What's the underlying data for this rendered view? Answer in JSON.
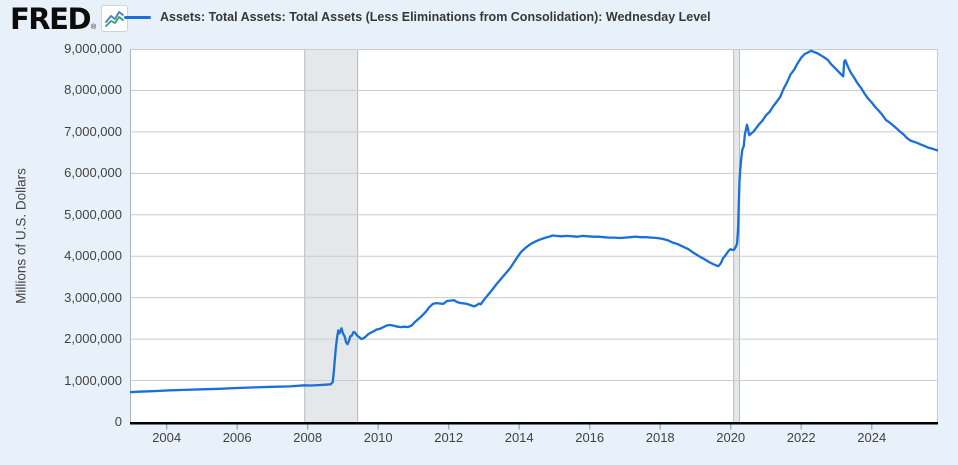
{
  "header": {
    "logo_text": "FRED",
    "registered_mark": "®"
  },
  "chart_data": {
    "type": "line",
    "title": "Assets: Total Assets: Total Assets (Less Eliminations from Consolidation): Wednesday Level",
    "ylabel": "Millions of U.S. Dollars",
    "ylim": [
      0,
      9000000
    ],
    "xlim_years": [
      2002.96,
      2025.88
    ],
    "grid": "horizontal",
    "legend_position": "top",
    "x_tick_years": [
      2004,
      2006,
      2008,
      2010,
      2012,
      2014,
      2016,
      2018,
      2020,
      2022,
      2024
    ],
    "x_tick_labels": [
      "2004",
      "2006",
      "2008",
      "2010",
      "2012",
      "2014",
      "2016",
      "2018",
      "2020",
      "2022",
      "2024"
    ],
    "y_tick_values": [
      0,
      1000000,
      2000000,
      3000000,
      4000000,
      5000000,
      6000000,
      7000000,
      8000000,
      9000000
    ],
    "y_tick_labels": [
      "0",
      "1,000,000",
      "2,000,000",
      "3,000,000",
      "4,000,000",
      "5,000,000",
      "6,000,000",
      "7,000,000",
      "8,000,000",
      "9,000,000"
    ],
    "recession_bands": [
      {
        "from": "2007-12",
        "to": "2009-06"
      },
      {
        "from": "2020-02",
        "to": "2020-04"
      }
    ],
    "colors": {
      "line": "#1a6fd8",
      "grid": "#cccccc",
      "recession_fill": "#e4e8eb",
      "recession_edge": "#b4bac0",
      "axis": "#000000",
      "background": "#e8f1fa",
      "plot_background": "#ffffff",
      "border": "#c9cdd1",
      "left_axis": "#b0b5b9",
      "tick_mark": "#93a9c0",
      "logo_icon_blue": "#4a7ebf",
      "logo_icon_green": "#2aa07a"
    },
    "series": [
      {
        "name": "Assets: Total Assets: Total Assets (Less Eliminations from Consolidation): Wednesday Level",
        "units": "Millions of U.S. Dollars",
        "points_year_value": [
          [
            2002.96,
            720000
          ],
          [
            2003.2,
            730000
          ],
          [
            2003.5,
            740000
          ],
          [
            2003.8,
            750000
          ],
          [
            2004.1,
            765000
          ],
          [
            2004.5,
            775000
          ],
          [
            2005.0,
            790000
          ],
          [
            2005.5,
            800000
          ],
          [
            2006.0,
            820000
          ],
          [
            2006.5,
            835000
          ],
          [
            2007.0,
            850000
          ],
          [
            2007.5,
            860000
          ],
          [
            2007.9,
            885000
          ],
          [
            2008.1,
            880000
          ],
          [
            2008.3,
            890000
          ],
          [
            2008.5,
            900000
          ],
          [
            2008.65,
            910000
          ],
          [
            2008.71,
            960000
          ],
          [
            2008.74,
            1210000
          ],
          [
            2008.77,
            1500000
          ],
          [
            2008.8,
            1800000
          ],
          [
            2008.84,
            2080000
          ],
          [
            2008.87,
            2210000
          ],
          [
            2008.9,
            2140000
          ],
          [
            2008.93,
            2200000
          ],
          [
            2008.96,
            2260000
          ],
          [
            2009.0,
            2140000
          ],
          [
            2009.05,
            2060000
          ],
          [
            2009.09,
            1920000
          ],
          [
            2009.13,
            1880000
          ],
          [
            2009.17,
            1950000
          ],
          [
            2009.21,
            2070000
          ],
          [
            2009.25,
            2080000
          ],
          [
            2009.3,
            2170000
          ],
          [
            2009.34,
            2160000
          ],
          [
            2009.4,
            2090000
          ],
          [
            2009.46,
            2050000
          ],
          [
            2009.52,
            2000000
          ],
          [
            2009.58,
            2020000
          ],
          [
            2009.65,
            2060000
          ],
          [
            2009.72,
            2120000
          ],
          [
            2009.8,
            2160000
          ],
          [
            2009.88,
            2190000
          ],
          [
            2009.95,
            2230000
          ],
          [
            2010.05,
            2250000
          ],
          [
            2010.15,
            2290000
          ],
          [
            2010.25,
            2330000
          ],
          [
            2010.35,
            2340000
          ],
          [
            2010.45,
            2320000
          ],
          [
            2010.55,
            2300000
          ],
          [
            2010.65,
            2290000
          ],
          [
            2010.75,
            2300000
          ],
          [
            2010.85,
            2290000
          ],
          [
            2010.95,
            2330000
          ],
          [
            2011.05,
            2420000
          ],
          [
            2011.15,
            2490000
          ],
          [
            2011.25,
            2570000
          ],
          [
            2011.35,
            2660000
          ],
          [
            2011.45,
            2770000
          ],
          [
            2011.55,
            2850000
          ],
          [
            2011.65,
            2870000
          ],
          [
            2011.75,
            2860000
          ],
          [
            2011.85,
            2850000
          ],
          [
            2011.95,
            2920000
          ],
          [
            2012.05,
            2930000
          ],
          [
            2012.15,
            2940000
          ],
          [
            2012.25,
            2890000
          ],
          [
            2012.35,
            2870000
          ],
          [
            2012.45,
            2860000
          ],
          [
            2012.55,
            2840000
          ],
          [
            2012.65,
            2810000
          ],
          [
            2012.72,
            2790000
          ],
          [
            2012.8,
            2820000
          ],
          [
            2012.86,
            2860000
          ],
          [
            2012.91,
            2840000
          ],
          [
            2012.96,
            2900000
          ],
          [
            2013.05,
            3000000
          ],
          [
            2013.15,
            3100000
          ],
          [
            2013.25,
            3210000
          ],
          [
            2013.35,
            3320000
          ],
          [
            2013.45,
            3420000
          ],
          [
            2013.55,
            3520000
          ],
          [
            2013.65,
            3620000
          ],
          [
            2013.75,
            3720000
          ],
          [
            2013.85,
            3850000
          ],
          [
            2013.95,
            3980000
          ],
          [
            2014.05,
            4100000
          ],
          [
            2014.15,
            4180000
          ],
          [
            2014.25,
            4250000
          ],
          [
            2014.35,
            4310000
          ],
          [
            2014.45,
            4350000
          ],
          [
            2014.55,
            4390000
          ],
          [
            2014.65,
            4420000
          ],
          [
            2014.75,
            4450000
          ],
          [
            2014.85,
            4470000
          ],
          [
            2014.95,
            4500000
          ],
          [
            2015.05,
            4490000
          ],
          [
            2015.2,
            4480000
          ],
          [
            2015.35,
            4490000
          ],
          [
            2015.5,
            4480000
          ],
          [
            2015.65,
            4470000
          ],
          [
            2015.8,
            4490000
          ],
          [
            2015.95,
            4480000
          ],
          [
            2016.1,
            4470000
          ],
          [
            2016.25,
            4470000
          ],
          [
            2016.4,
            4460000
          ],
          [
            2016.55,
            4450000
          ],
          [
            2016.7,
            4450000
          ],
          [
            2016.85,
            4440000
          ],
          [
            2017.0,
            4450000
          ],
          [
            2017.15,
            4460000
          ],
          [
            2017.3,
            4470000
          ],
          [
            2017.45,
            4460000
          ],
          [
            2017.6,
            4460000
          ],
          [
            2017.75,
            4450000
          ],
          [
            2017.9,
            4440000
          ],
          [
            2018.05,
            4420000
          ],
          [
            2018.2,
            4390000
          ],
          [
            2018.35,
            4330000
          ],
          [
            2018.5,
            4290000
          ],
          [
            2018.65,
            4230000
          ],
          [
            2018.8,
            4170000
          ],
          [
            2018.95,
            4080000
          ],
          [
            2019.1,
            4000000
          ],
          [
            2019.25,
            3930000
          ],
          [
            2019.4,
            3850000
          ],
          [
            2019.55,
            3790000
          ],
          [
            2019.65,
            3760000
          ],
          [
            2019.72,
            3830000
          ],
          [
            2019.78,
            3950000
          ],
          [
            2019.85,
            4020000
          ],
          [
            2019.95,
            4140000
          ],
          [
            2020.0,
            4170000
          ],
          [
            2020.05,
            4150000
          ],
          [
            2020.1,
            4160000
          ],
          [
            2020.15,
            4240000
          ],
          [
            2020.18,
            4310000
          ],
          [
            2020.21,
            4670000
          ],
          [
            2020.23,
            5250000
          ],
          [
            2020.25,
            5810000
          ],
          [
            2020.27,
            6080000
          ],
          [
            2020.3,
            6370000
          ],
          [
            2020.33,
            6570000
          ],
          [
            2020.37,
            6660000
          ],
          [
            2020.4,
            6930000
          ],
          [
            2020.44,
            7090000
          ],
          [
            2020.46,
            7170000
          ],
          [
            2020.49,
            7080000
          ],
          [
            2020.51,
            6970000
          ],
          [
            2020.53,
            6920000
          ],
          [
            2020.58,
            6960000
          ],
          [
            2020.65,
            7010000
          ],
          [
            2020.72,
            7090000
          ],
          [
            2020.8,
            7180000
          ],
          [
            2020.9,
            7270000
          ],
          [
            2021.0,
            7400000
          ],
          [
            2021.1,
            7480000
          ],
          [
            2021.2,
            7610000
          ],
          [
            2021.3,
            7720000
          ],
          [
            2021.4,
            7840000
          ],
          [
            2021.5,
            8040000
          ],
          [
            2021.6,
            8200000
          ],
          [
            2021.7,
            8390000
          ],
          [
            2021.8,
            8500000
          ],
          [
            2021.9,
            8660000
          ],
          [
            2022.0,
            8790000
          ],
          [
            2022.1,
            8880000
          ],
          [
            2022.2,
            8920000
          ],
          [
            2022.28,
            8960000
          ],
          [
            2022.35,
            8930000
          ],
          [
            2022.45,
            8900000
          ],
          [
            2022.55,
            8850000
          ],
          [
            2022.65,
            8800000
          ],
          [
            2022.75,
            8740000
          ],
          [
            2022.85,
            8630000
          ],
          [
            2022.95,
            8550000
          ],
          [
            2023.05,
            8460000
          ],
          [
            2023.15,
            8370000
          ],
          [
            2023.19,
            8340000
          ],
          [
            2023.22,
            8690000
          ],
          [
            2023.25,
            8730000
          ],
          [
            2023.32,
            8580000
          ],
          [
            2023.4,
            8440000
          ],
          [
            2023.5,
            8310000
          ],
          [
            2023.6,
            8170000
          ],
          [
            2023.7,
            8060000
          ],
          [
            2023.8,
            7920000
          ],
          [
            2023.9,
            7800000
          ],
          [
            2024.0,
            7710000
          ],
          [
            2024.1,
            7600000
          ],
          [
            2024.2,
            7510000
          ],
          [
            2024.3,
            7410000
          ],
          [
            2024.4,
            7290000
          ],
          [
            2024.5,
            7230000
          ],
          [
            2024.6,
            7160000
          ],
          [
            2024.7,
            7090000
          ],
          [
            2024.8,
            7010000
          ],
          [
            2024.9,
            6940000
          ],
          [
            2025.0,
            6850000
          ],
          [
            2025.1,
            6790000
          ],
          [
            2025.2,
            6760000
          ],
          [
            2025.3,
            6730000
          ],
          [
            2025.4,
            6690000
          ],
          [
            2025.5,
            6660000
          ],
          [
            2025.6,
            6620000
          ],
          [
            2025.7,
            6600000
          ],
          [
            2025.8,
            6570000
          ],
          [
            2025.88,
            6550000
          ]
        ]
      }
    ]
  }
}
